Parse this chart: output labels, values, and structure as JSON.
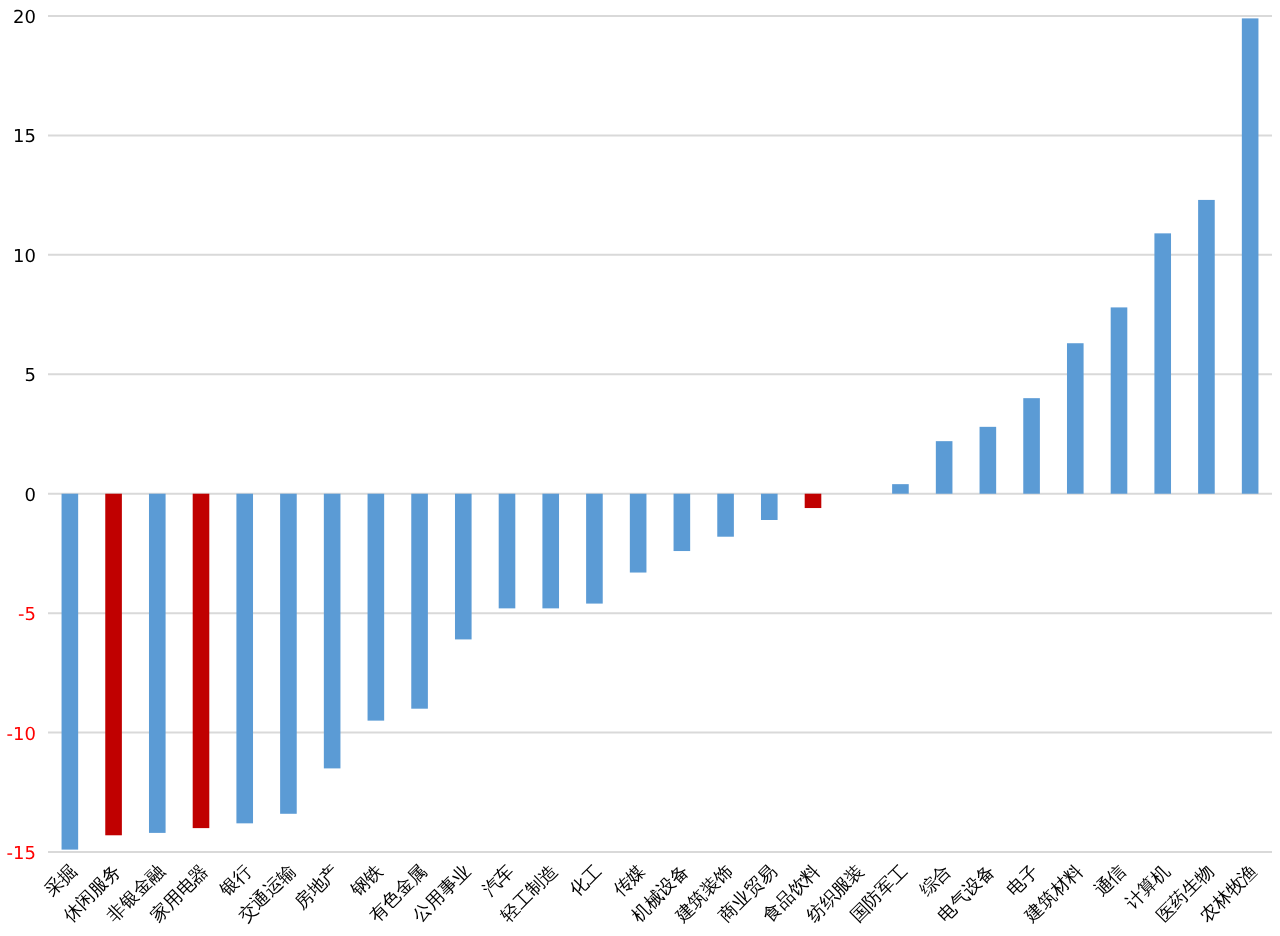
{
  "chart_data": {
    "type": "bar",
    "categories": [
      "采掘",
      "休闲服务",
      "非银金融",
      "家用电器",
      "银行",
      "交通运输",
      "房地产",
      "钢铁",
      "有色金属",
      "公用事业",
      "汽车",
      "轻工制造",
      "化工",
      "传媒",
      "机械设备",
      "建筑装饰",
      "商业贸易",
      "食品饮料",
      "纺织服装",
      "国防军工",
      "综合",
      "电气设备",
      "电子",
      "建筑材料",
      "通信",
      "计算机",
      "医药生物",
      "农林牧渔"
    ],
    "values": [
      -14.9,
      -14.3,
      -14.2,
      -14.0,
      -13.8,
      -13.4,
      -11.5,
      -9.5,
      -9.0,
      -6.1,
      -4.8,
      -4.8,
      -4.6,
      -3.3,
      -2.4,
      -1.8,
      -1.1,
      -0.6,
      0,
      0.4,
      2.2,
      2.8,
      4.0,
      6.3,
      7.8,
      10.9,
      12.3,
      19.9
    ],
    "colors": [
      "#5b9bd5",
      "#c00000",
      "#5b9bd5",
      "#c00000",
      "#5b9bd5",
      "#5b9bd5",
      "#5b9bd5",
      "#5b9bd5",
      "#5b9bd5",
      "#5b9bd5",
      "#5b9bd5",
      "#5b9bd5",
      "#5b9bd5",
      "#5b9bd5",
      "#5b9bd5",
      "#5b9bd5",
      "#5b9bd5",
      "#c00000",
      "#5b9bd5",
      "#5b9bd5",
      "#5b9bd5",
      "#5b9bd5",
      "#5b9bd5",
      "#5b9bd5",
      "#5b9bd5",
      "#5b9bd5",
      "#5b9bd5",
      "#5b9bd5"
    ],
    "ylim": [
      -15,
      20
    ],
    "yticks": [
      -15,
      -10,
      -5,
      0,
      5,
      10,
      15,
      20
    ],
    "grid": "y"
  }
}
